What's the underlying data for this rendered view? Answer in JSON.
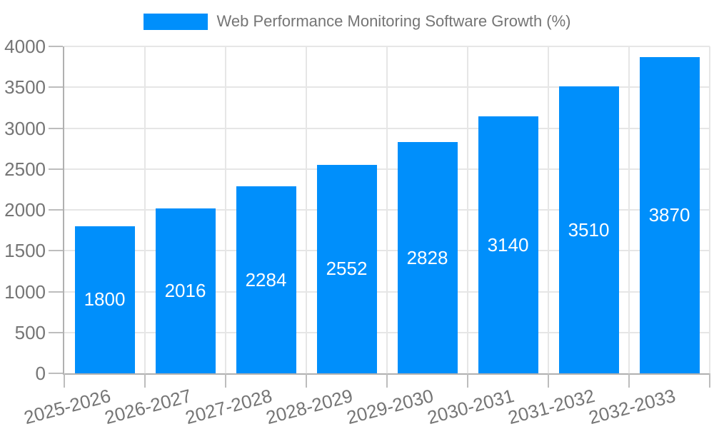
{
  "legend": {
    "series_label": "Web Performance Monitoring Software Growth (%)",
    "swatch_color": "#008FFB"
  },
  "chart_data": {
    "type": "bar",
    "title": "Web Performance Monitoring Software Growth (%)",
    "categories": [
      "2025-2026",
      "2026-2027",
      "2027-2028",
      "2028-2029",
      "2029-2030",
      "2030-2031",
      "2031-2032",
      "2032-2033"
    ],
    "values": [
      1800,
      2016,
      2284,
      2552,
      2828,
      3140,
      3510,
      3870
    ],
    "xlabel": "",
    "ylabel": "",
    "ylim": [
      0,
      4000
    ],
    "yticks": [
      0,
      500,
      1000,
      1500,
      2000,
      2500,
      3000,
      3500,
      4000
    ],
    "grid": true,
    "legend_position": "top",
    "x_label_rotation_deg": -15,
    "bar_color": "#008FFB",
    "bar_label_color": "#ffffff",
    "axis_text_color": "#757575",
    "grid_color": "#e6e6e6",
    "axis_line_color": "#b0b0b0",
    "tick_color": "#bdbdbd"
  }
}
